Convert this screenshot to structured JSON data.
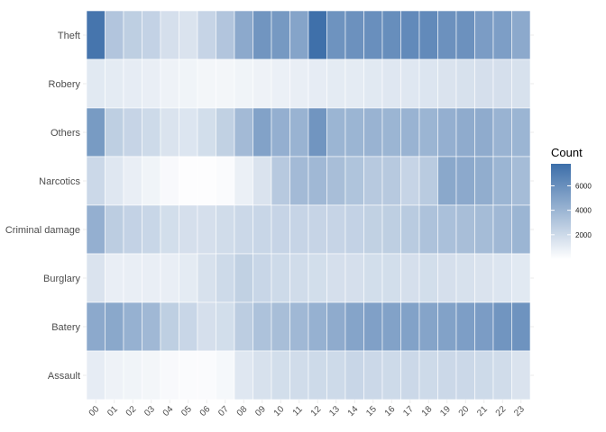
{
  "chart_data": {
    "type": "heatmap",
    "x_categories": [
      "00",
      "01",
      "02",
      "03",
      "04",
      "05",
      "06",
      "07",
      "08",
      "09",
      "10",
      "11",
      "12",
      "13",
      "14",
      "15",
      "16",
      "17",
      "18",
      "19",
      "20",
      "21",
      "22",
      "23"
    ],
    "y_categories": [
      "Theft",
      "Robery",
      "Others",
      "Narcotics",
      "Criminal damage",
      "Burglary",
      "Batery",
      "Assault"
    ],
    "values": [
      [
        7400,
        3100,
        2600,
        2400,
        1700,
        1500,
        2300,
        3100,
        4600,
        5700,
        5500,
        4900,
        7700,
        5800,
        5900,
        6000,
        6100,
        6300,
        6300,
        5900,
        5900,
        5300,
        5200,
        4600
      ],
      [
        1200,
        1100,
        1000,
        900,
        700,
        600,
        500,
        500,
        600,
        700,
        800,
        900,
        1000,
        1100,
        1100,
        1200,
        1300,
        1300,
        1400,
        1500,
        1600,
        1700,
        1700,
        1600
      ],
      [
        5400,
        2600,
        2300,
        2000,
        1500,
        1400,
        1800,
        2500,
        3700,
        5000,
        4300,
        4100,
        5700,
        4000,
        4000,
        4100,
        4000,
        4100,
        4000,
        4300,
        4500,
        4500,
        4100,
        4000
      ],
      [
        2100,
        1300,
        900,
        600,
        300,
        100,
        100,
        200,
        800,
        1500,
        2900,
        3700,
        3800,
        3500,
        3200,
        2900,
        2900,
        2300,
        2800,
        4700,
        4600,
        4400,
        4000,
        3600
      ],
      [
        4300,
        2700,
        2400,
        2200,
        1800,
        1700,
        1700,
        1900,
        2100,
        2200,
        2300,
        2300,
        2300,
        2300,
        2400,
        2500,
        2600,
        2800,
        3300,
        3400,
        3500,
        3600,
        3800,
        4000
      ],
      [
        1500,
        900,
        900,
        900,
        900,
        1100,
        1600,
        2000,
        2500,
        2200,
        2000,
        1900,
        1800,
        1700,
        1700,
        1800,
        1800,
        1700,
        1800,
        1700,
        1600,
        1500,
        1400,
        1200
      ],
      [
        4600,
        4700,
        4200,
        3800,
        2600,
        2200,
        1700,
        1800,
        2700,
        3300,
        3500,
        3800,
        4200,
        4500,
        4900,
        5100,
        5000,
        5000,
        4900,
        5000,
        5200,
        5300,
        5700,
        5800
      ],
      [
        1000,
        700,
        600,
        500,
        300,
        200,
        200,
        400,
        1300,
        1600,
        1800,
        1900,
        2000,
        2000,
        2200,
        2100,
        2000,
        2100,
        2000,
        2100,
        2100,
        2000,
        1900,
        1500
      ]
    ],
    "legend": {
      "title": "Count",
      "ticks": [
        2000,
        4000,
        6000
      ],
      "range": [
        0,
        7800
      ],
      "placement": "right"
    },
    "colors": {
      "low": "#ffffff",
      "high": "#3c6ea9",
      "grid": "#ebebeb",
      "tick_text": "#4d4d4d"
    },
    "grid": true,
    "title": "",
    "xlabel": "",
    "ylabel": ""
  }
}
